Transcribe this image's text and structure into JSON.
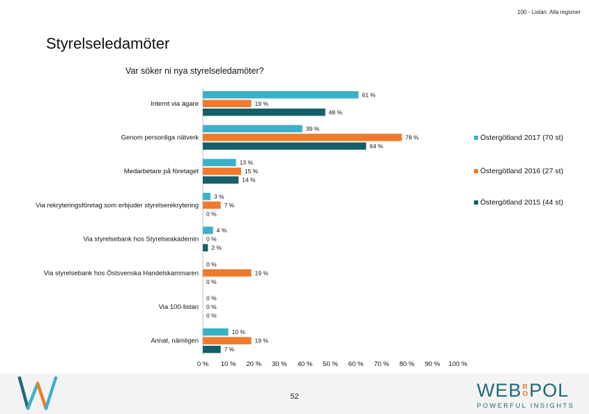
{
  "header": {
    "top_right": "100 - Listan. Alla regioner"
  },
  "page_title": "Styrelseledamöter",
  "colors": {
    "series_2017": "#3bb0c9",
    "series_2016": "#f07a2a",
    "series_2015": "#155e6a",
    "grid": "#d9d9d9",
    "footer_bg": "#f3f3f3"
  },
  "chart_data": {
    "type": "bar",
    "orientation": "horizontal",
    "title": "Var söker ni nya styrelseledamöter?",
    "categories": [
      "Internt via ägare",
      "Genom personliga nätverk",
      "Medarbetare på företaget",
      "Via rekryteringsföretag som erbjuder styrelserekrytering",
      "Via styrelsebank hos Styrelseakademin",
      "Via styrelsebank hos Östsvenska Handelskammaren",
      "Via 100-listan",
      "Annat, nämligen"
    ],
    "series": [
      {
        "name": "Östergötland 2017 (70 st)",
        "color": "#3bb0c9",
        "values": [
          61,
          39,
          13,
          3,
          4,
          0,
          0,
          10
        ]
      },
      {
        "name": "Östergötland 2016 (27 st)",
        "color": "#f07a2a",
        "values": [
          19,
          78,
          15,
          7,
          0,
          19,
          0,
          19
        ]
      },
      {
        "name": "Östergötland 2015 (44 st)",
        "color": "#155e6a",
        "values": [
          48,
          64,
          14,
          0,
          2,
          0,
          0,
          7
        ]
      }
    ],
    "value_suffix": " %",
    "xlim": [
      0,
      100
    ],
    "xticks": [
      0,
      10,
      20,
      30,
      40,
      50,
      60,
      70,
      80,
      90,
      100
    ],
    "xtick_labels": [
      "0 %",
      "10 %",
      "20 %",
      "30 %",
      "40 %",
      "50 %",
      "60 %",
      "70 %",
      "80 %",
      "90 %",
      "100 %"
    ],
    "grid": false,
    "legend_position": "right"
  },
  "footer": {
    "page_number": "52",
    "brand_part1": "WEB",
    "brand_ro_top": "R",
    "brand_ro_bottom": "O",
    "brand_part2": "POL",
    "brand_tagline": "POWERFUL INSIGHTS",
    "logo_icon": "w-logo-icon"
  }
}
